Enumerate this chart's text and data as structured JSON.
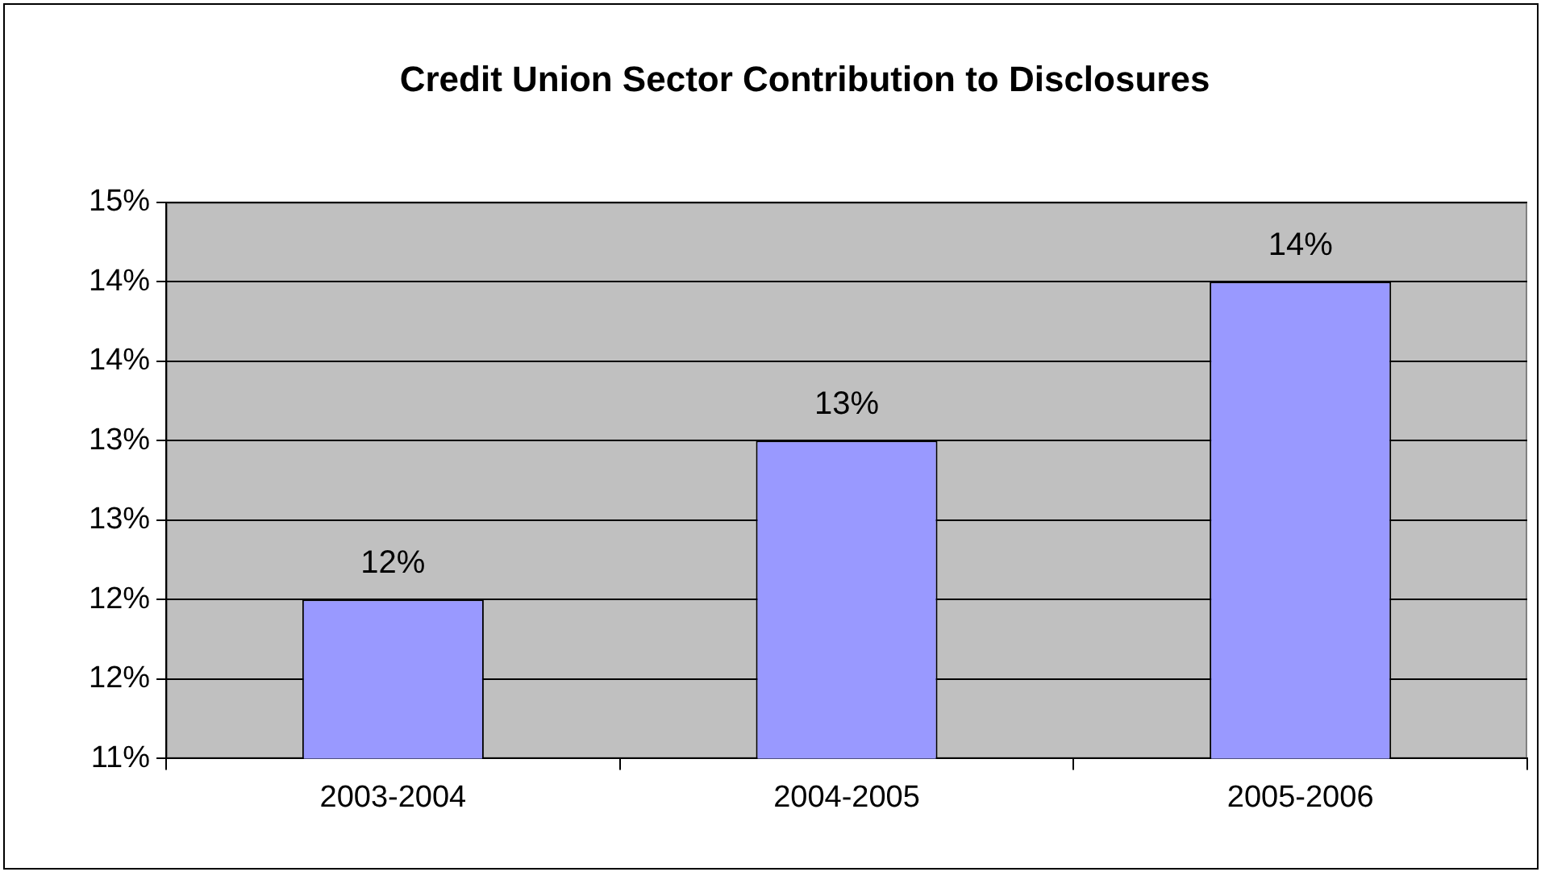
{
  "chart_data": {
    "type": "bar",
    "title": "Credit Union Sector Contribution to Disclosures",
    "categories": [
      "2003-2004",
      "2004-2005",
      "2005-2006"
    ],
    "values": [
      12,
      13,
      14
    ],
    "color": "#9999ff",
    "value_labels": [
      "12%",
      "13%",
      "14%"
    ],
    "ylim": [
      11,
      14.5
    ],
    "yticks": [
      {
        "value": 11,
        "label": "11%"
      },
      {
        "value": 11.5,
        "label": "12%"
      },
      {
        "value": 12,
        "label": "12%"
      },
      {
        "value": 12.5,
        "label": "13%"
      },
      {
        "value": 13,
        "label": "13%"
      },
      {
        "value": 13.5,
        "label": "14%"
      },
      {
        "value": 14,
        "label": "14%"
      },
      {
        "value": 14.5,
        "label": "15%"
      }
    ],
    "grid": "y",
    "legend": false
  }
}
